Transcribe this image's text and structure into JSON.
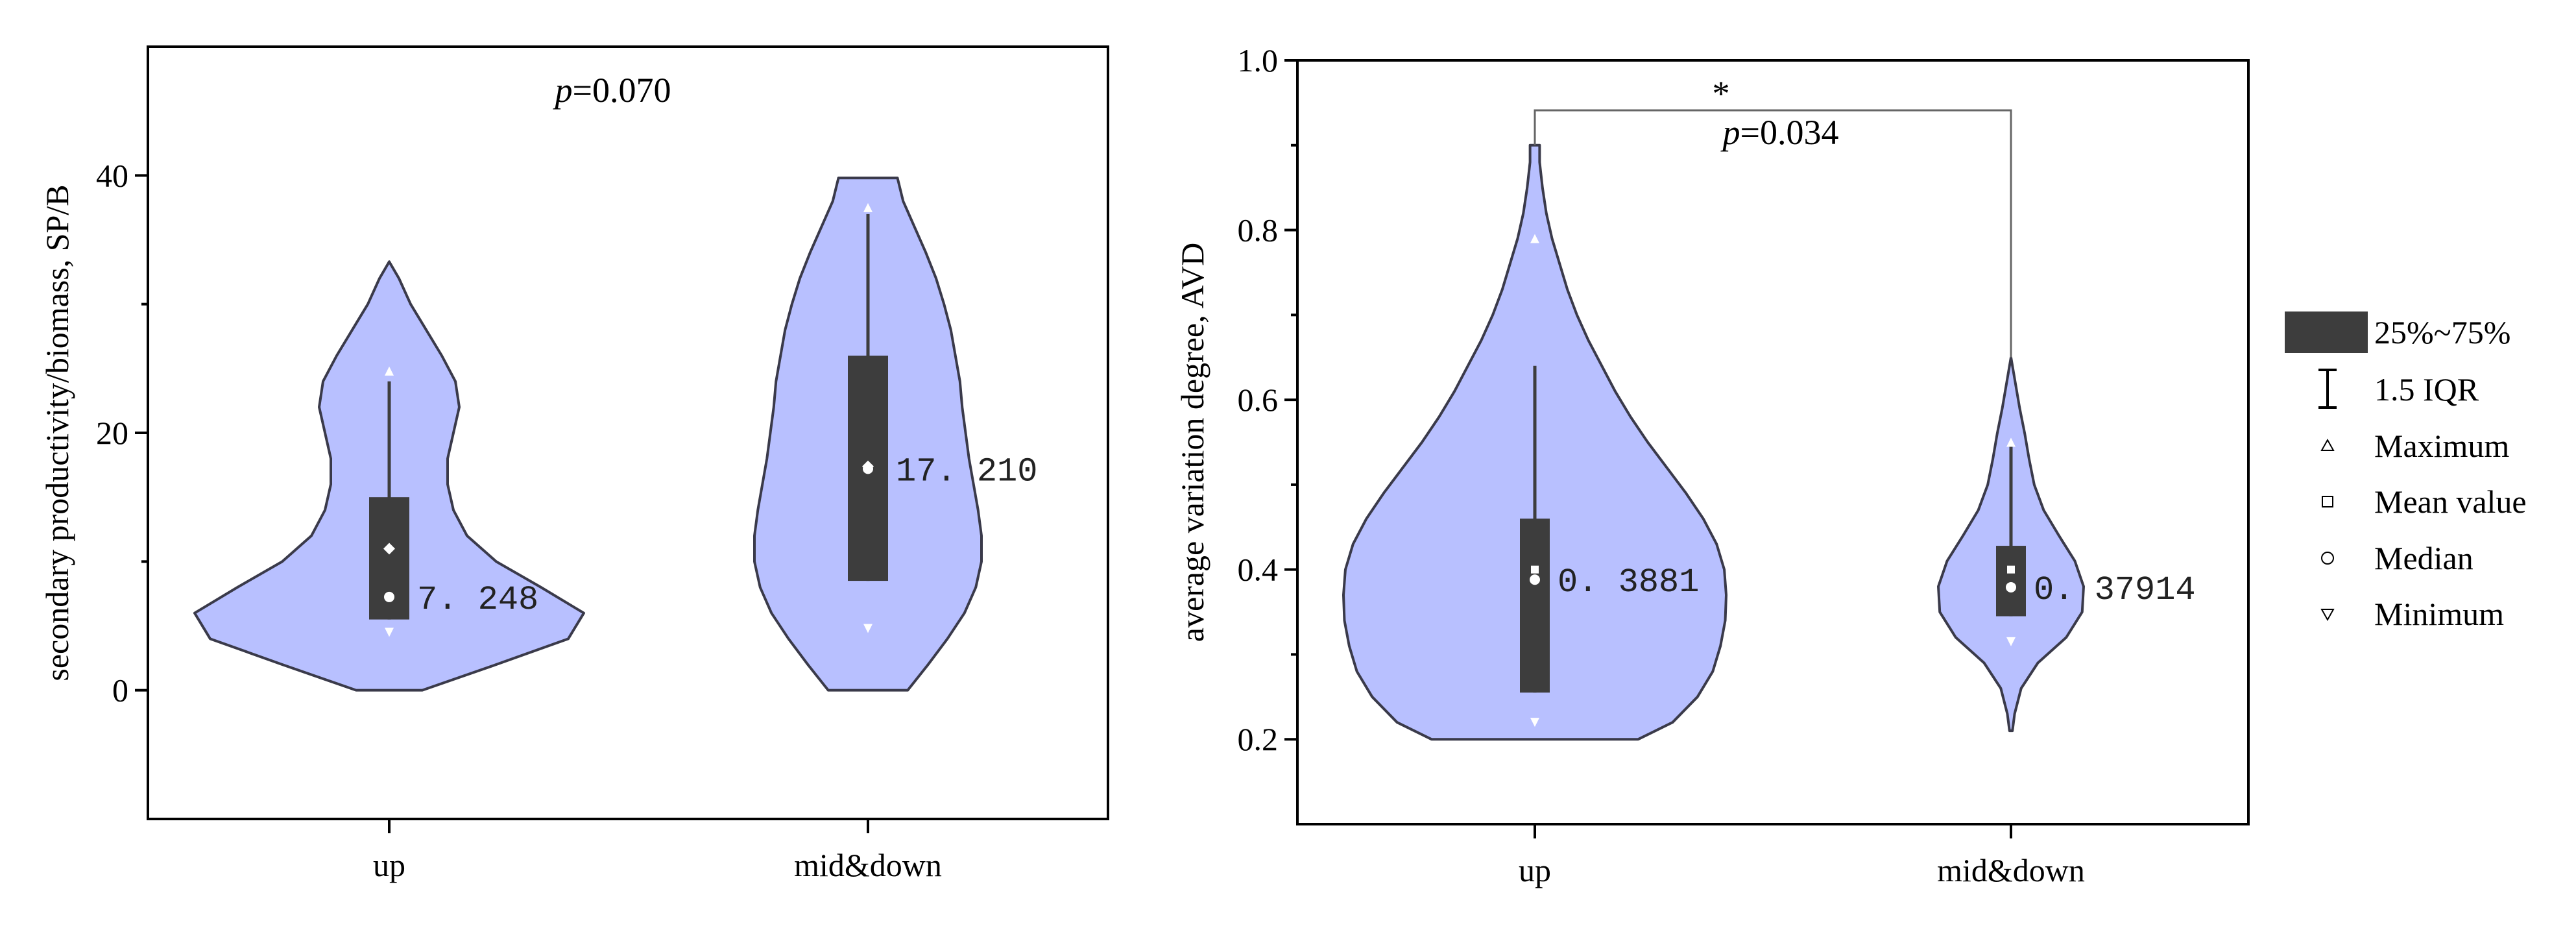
{
  "colors": {
    "violin_fill": "#b8c0ff",
    "violin_stroke": "#3a3a4a",
    "box_fill": "#3d3d3d",
    "marker": "#ffffff"
  },
  "chart_data": [
    {
      "type": "violin",
      "xlabel": "",
      "ylabel": "secondary productivity/biomass, SP/B",
      "ylim": [
        -10,
        50
      ],
      "yticks": [
        0,
        20,
        40
      ],
      "ytick_labels": [
        "0",
        "20",
        "40"
      ],
      "categories": [
        "up",
        "mid&down"
      ],
      "annotation": {
        "prefix": "p",
        "text": "=0.070"
      },
      "groups": [
        {
          "category": "up",
          "q1": 5.5,
          "q3": 15.0,
          "whisker_low": 5.5,
          "whisker_high": 24.0,
          "median": 7.248,
          "mean": 11.0,
          "min": 4.5,
          "max": 24.8,
          "median_label": "7. 248",
          "density_y": [
            0,
            2,
            4,
            6,
            8,
            10,
            12,
            14,
            16,
            18,
            20,
            22,
            24,
            26,
            28,
            30,
            32,
            33.3
          ],
          "density_w": [
            0.17,
            0.55,
            0.92,
            1.0,
            0.78,
            0.55,
            0.4,
            0.33,
            0.3,
            0.3,
            0.33,
            0.36,
            0.34,
            0.27,
            0.19,
            0.11,
            0.05,
            0.0
          ]
        },
        {
          "category": "mid&down",
          "q1": 8.5,
          "q3": 26.0,
          "whisker_low": 8.5,
          "whisker_high": 37.0,
          "median": 17.21,
          "mean": 17.4,
          "min": 4.8,
          "max": 37.5,
          "median_label": "17. 210",
          "density_y": [
            0,
            2,
            4,
            6,
            8,
            10,
            12,
            14,
            16,
            18,
            20,
            22,
            24,
            26,
            28,
            30,
            32,
            34,
            36,
            38,
            39.8
          ],
          "density_w": [
            0.35,
            0.53,
            0.7,
            0.85,
            0.95,
            1.0,
            1.0,
            0.97,
            0.93,
            0.89,
            0.86,
            0.83,
            0.81,
            0.77,
            0.73,
            0.67,
            0.6,
            0.51,
            0.41,
            0.31,
            0.26
          ]
        }
      ]
    },
    {
      "type": "violin",
      "xlabel": "",
      "ylabel": "average variation degree, AVD",
      "ylim": [
        0.1,
        1.0
      ],
      "yticks": [
        0.2,
        0.4,
        0.6,
        0.8,
        1.0
      ],
      "ytick_labels": [
        "0.2",
        "0.4",
        "0.6",
        "0.8",
        "1.0"
      ],
      "categories": [
        "up",
        "mid&down"
      ],
      "annotation": {
        "prefix": "p",
        "text": "=0.034",
        "star": "*"
      },
      "groups": [
        {
          "category": "up",
          "q1": 0.255,
          "q3": 0.46,
          "whisker_low": 0.255,
          "whisker_high": 0.64,
          "median": 0.3881,
          "mean": 0.4,
          "min": 0.22,
          "max": 0.79,
          "median_label": "0. 3881",
          "density_y": [
            0.2,
            0.22,
            0.25,
            0.28,
            0.31,
            0.34,
            0.37,
            0.4,
            0.43,
            0.46,
            0.49,
            0.52,
            0.55,
            0.58,
            0.61,
            0.64,
            0.67,
            0.7,
            0.73,
            0.76,
            0.79,
            0.82,
            0.85,
            0.88,
            0.9
          ],
          "density_w": [
            0.54,
            0.72,
            0.85,
            0.93,
            0.97,
            0.995,
            1.0,
            0.99,
            0.95,
            0.88,
            0.79,
            0.69,
            0.59,
            0.5,
            0.42,
            0.35,
            0.28,
            0.22,
            0.17,
            0.13,
            0.09,
            0.06,
            0.04,
            0.025,
            0.025
          ]
        },
        {
          "category": "mid&down",
          "q1": 0.345,
          "q3": 0.428,
          "whisker_low": 0.345,
          "whisker_high": 0.55,
          "median": 0.37914,
          "mean": 0.4,
          "min": 0.315,
          "max": 0.55,
          "median_label": "0. 37914",
          "density_y": [
            0.21,
            0.23,
            0.26,
            0.29,
            0.32,
            0.35,
            0.38,
            0.41,
            0.44,
            0.47,
            0.5,
            0.53,
            0.56,
            0.59,
            0.62,
            0.65
          ],
          "density_w": [
            0.02,
            0.05,
            0.14,
            0.37,
            0.76,
            0.98,
            1.0,
            0.88,
            0.66,
            0.45,
            0.32,
            0.25,
            0.19,
            0.12,
            0.06,
            0.0
          ]
        }
      ]
    }
  ],
  "legend": {
    "items": [
      {
        "symbol": "box",
        "label": "25%~75%"
      },
      {
        "symbol": "iqr",
        "label": "1.5 IQR"
      },
      {
        "symbol": "triangle-up",
        "label": "Maximum"
      },
      {
        "symbol": "square",
        "label": "Mean value"
      },
      {
        "symbol": "circle",
        "label": "Median"
      },
      {
        "symbol": "triangle-down",
        "label": "Minimum"
      }
    ]
  }
}
